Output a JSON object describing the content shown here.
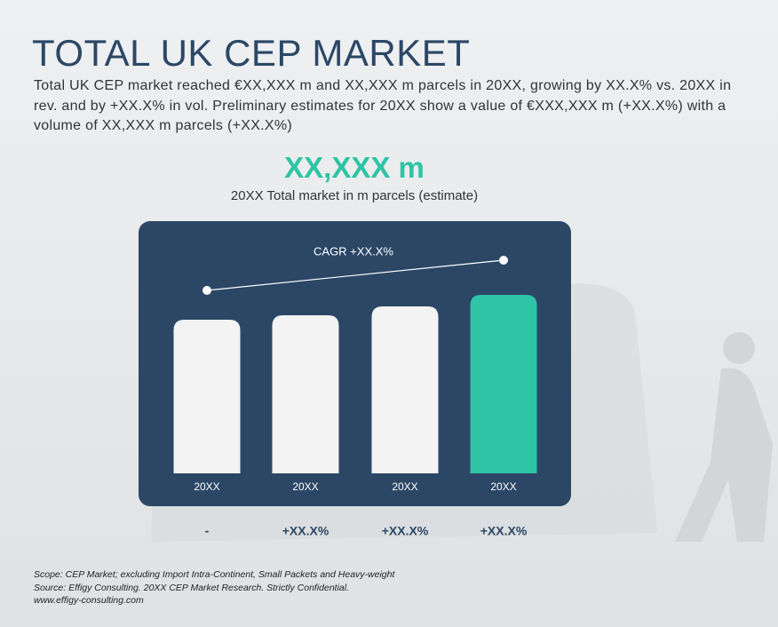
{
  "title": "TOTAL UK CEP MARKET",
  "description": "Total UK CEP market reached €XX,XXX m and XX,XXX m parcels in 20XX, growing by XX.X% vs. 20XX in rev. and by +XX.X% in vol. Preliminary estimates for 20XX show a value of €XXX,XXX m (+XX.X%) with a volume of XX,XXX m parcels (+XX.X%)",
  "headline": "XX,XXX m",
  "headline_caption": "20XX Total market in m parcels (estimate)",
  "chart_data": {
    "type": "bar",
    "categories": [
      "20XX",
      "20XX",
      "20XX",
      "20XX"
    ],
    "values": [
      173,
      178,
      188,
      201
    ],
    "colors": [
      "#f3f3f4",
      "#f3f3f4",
      "#f3f3f4",
      "#2ec4a5"
    ],
    "annotation": "CAGR +XX.X%",
    "growth_labels": [
      "-",
      "+XX.X%",
      "+XX.X%",
      "+XX.X%"
    ]
  },
  "footnotes": [
    "Scope: CEP Market; excluding Import Intra-Continent, Small Packets and Heavy-weight",
    "Source: Effigy Consulting. 20XX CEP Market Research. Strictly Confidential.",
    "www.effigy-consulting.com"
  ]
}
